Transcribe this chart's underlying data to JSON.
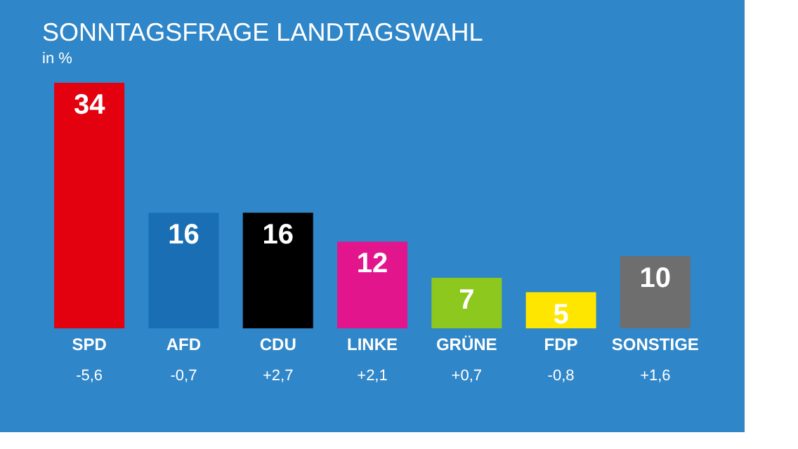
{
  "chart_data": {
    "type": "bar",
    "title": "SONNTAGSFRAGE LANDTAGSWAHL",
    "subtitle": "in %",
    "categories": [
      "SPD",
      "AFD",
      "CDU",
      "LINKE",
      "GRÜNE",
      "FDP",
      "SONSTIGE"
    ],
    "values": [
      34,
      16,
      16,
      12,
      7,
      5,
      10
    ],
    "colors": [
      "#e3000f",
      "#1a6fb4",
      "#000000",
      "#e2158c",
      "#8cc81e",
      "#ffe600",
      "#6e6e6e"
    ],
    "data_labels": true,
    "annotations": [
      "-5,6",
      "-0,7",
      "+2,7",
      "+2,1",
      "+0,7",
      "-0,8",
      "+1,6"
    ]
  }
}
